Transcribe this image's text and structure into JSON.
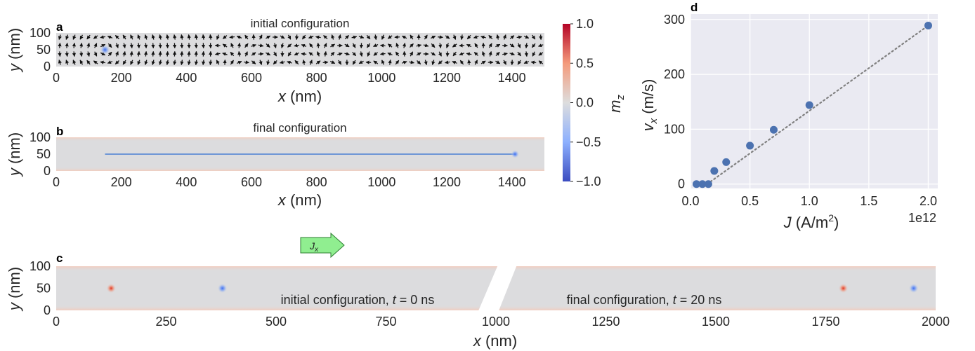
{
  "colors": {
    "panel_bg": "#dcdcde",
    "plot_bg_d": "#eaeaf2",
    "marker": "#4c72b0",
    "fit_line": "#808080",
    "skyrmion_blue": "#5a8cf5",
    "skyrmion_red": "#e3483a",
    "current_arrow": "#90ee90"
  },
  "panel_a": {
    "label": "a",
    "title": "initial configuration",
    "xlabel_var": "x",
    "xlabel_unit": " (nm)",
    "ylabel_var": "y",
    "ylabel_unit": " (nm)",
    "xticks": [
      0,
      200,
      400,
      600,
      800,
      1000,
      1200,
      1400
    ],
    "yticks": [
      0,
      50,
      100
    ],
    "xlim": [
      0,
      1500
    ],
    "ylim": [
      0,
      100
    ],
    "skyrmion": {
      "x": 150,
      "y": 50
    }
  },
  "panel_b": {
    "label": "b",
    "title": "final configuration",
    "xlabel_var": "x",
    "xlabel_unit": " (nm)",
    "ylabel_var": "y",
    "ylabel_unit": " (nm)",
    "xticks": [
      0,
      200,
      400,
      600,
      800,
      1000,
      1200,
      1400
    ],
    "yticks": [
      0,
      50,
      100
    ],
    "xlim": [
      0,
      1500
    ],
    "ylim": [
      0,
      100
    ],
    "trajectory": {
      "x_start": 150,
      "x_end": 1410,
      "y": 50
    },
    "skyrmion": {
      "x": 1410,
      "y": 50
    }
  },
  "colorbar": {
    "label_var": "m",
    "label_sub": "z",
    "ticks": [
      "1.0",
      "0.5",
      "0.0",
      "−0.5",
      "−1.0"
    ],
    "tick_values": [
      1.0,
      0.5,
      0.0,
      -0.5,
      -1.0
    ],
    "range": [
      -1.0,
      1.0
    ],
    "colormap": "coolwarm"
  },
  "panel_c": {
    "label": "c",
    "arrow_label_var": "J",
    "arrow_label_sub": "x",
    "xlabel_var": "x",
    "xlabel_unit": " (nm)",
    "ylabel_var": "y",
    "ylabel_unit": " (nm)",
    "xticks": [
      0,
      250,
      500,
      750,
      1000,
      1250,
      1500,
      1750,
      2000
    ],
    "yticks": [
      0,
      50,
      100
    ],
    "xlim": [
      0,
      2000
    ],
    "ylim": [
      0,
      100
    ],
    "annotation_left": {
      "prefix": "initial configuration, ",
      "var": "t",
      "suffix": " = 0 ns"
    },
    "annotation_right": {
      "prefix": "final configuration, ",
      "var": "t",
      "suffix": " = 20 ns"
    },
    "skyrmions": [
      {
        "x": 125,
        "y": 50,
        "mz": 1
      },
      {
        "x": 378,
        "y": 50,
        "mz": -1
      },
      {
        "x": 1790,
        "y": 50,
        "mz": 1
      },
      {
        "x": 1950,
        "y": 50,
        "mz": -1
      }
    ]
  },
  "chart_data": {
    "type": "scatter",
    "label": "d",
    "xlabel_var": "J",
    "xlabel_unit": " (A/m",
    "xlabel_sup": "2",
    "xlabel_close": ")",
    "ylabel_var": "v",
    "ylabel_sub": "x",
    "ylabel_unit": " (m/s)",
    "x_offset_text": "1e12",
    "xticks": [
      "0.0",
      "0.5",
      "1.0",
      "1.5",
      "2.0"
    ],
    "xtick_values": [
      0.0,
      0.5,
      1.0,
      1.5,
      2.0
    ],
    "yticks": [
      "0",
      "100",
      "200",
      "300"
    ],
    "ytick_values": [
      0,
      100,
      200,
      300
    ],
    "xlim": [
      0.0,
      2.08
    ],
    "ylim": [
      -8,
      310
    ],
    "grid": true,
    "series": [
      {
        "x": [
          0.05,
          0.1,
          0.15,
          0.2,
          0.3,
          0.5,
          0.7,
          1.0,
          2.0
        ],
        "y": [
          0,
          0,
          0,
          24,
          40,
          70,
          99,
          144,
          289
        ]
      }
    ],
    "fit_line": {
      "x": [
        0.14,
        2.0
      ],
      "y": [
        0,
        289
      ],
      "style": "dotted"
    }
  }
}
